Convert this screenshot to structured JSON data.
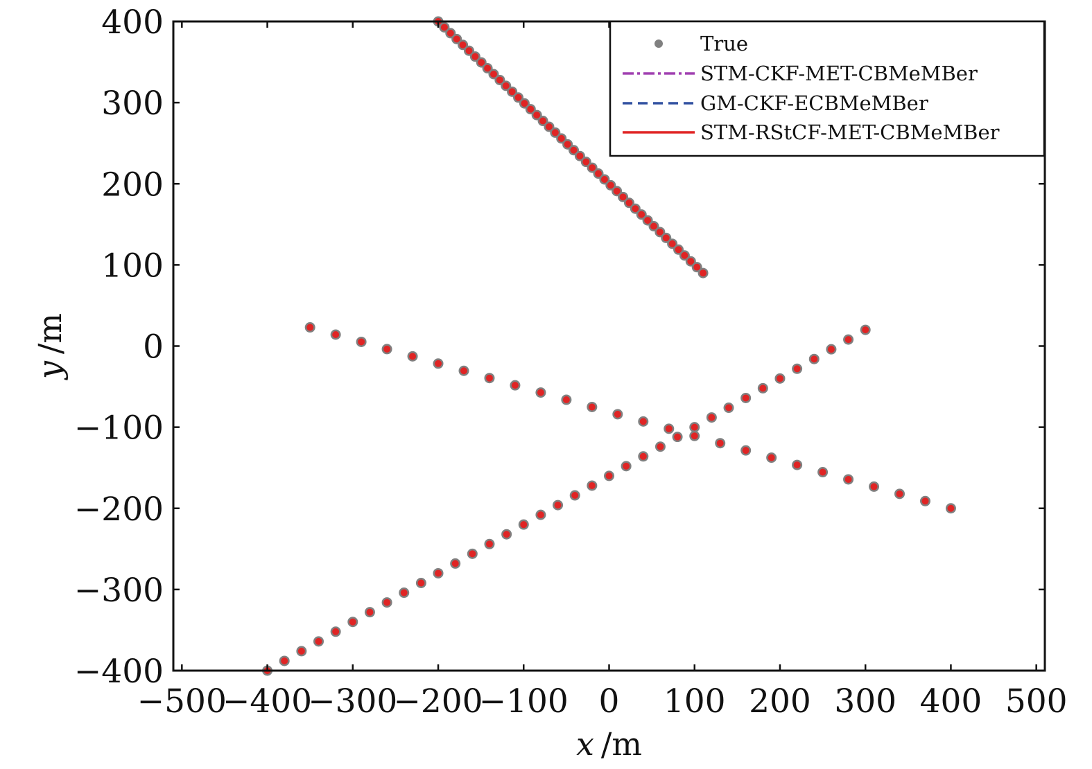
{
  "chart_data": {
    "type": "scatter",
    "title": "",
    "xlabel_var": "x",
    "xlabel_unit": "/m",
    "ylabel_var": "y",
    "ylabel_unit": "/m",
    "xlim": [
      -510,
      510
    ],
    "ylim": [
      -400,
      400
    ],
    "xticks": [
      -500,
      -400,
      -300,
      -200,
      -100,
      0,
      100,
      200,
      300,
      400,
      500
    ],
    "yticks": [
      -400,
      -300,
      -200,
      -100,
      0,
      100,
      200,
      300,
      400
    ],
    "xtick_labels": [
      "−500",
      "−400",
      "−300",
      "−200",
      "−100",
      "0",
      "100",
      "200",
      "300",
      "400",
      "500"
    ],
    "ytick_labels": [
      "−400",
      "−300",
      "−200",
      "−100",
      "0",
      "100",
      "200",
      "300",
      "400"
    ],
    "grid": false,
    "legend_position": "top-right",
    "legend": [
      {
        "name": "True",
        "style": "dot",
        "color": "#808080"
      },
      {
        "name": "STM-CKF-MET-CBMeMBer",
        "style": "dash-dot",
        "color": "#a040b0"
      },
      {
        "name": "GM-CKF-ECBMeMBer",
        "style": "dashed",
        "color": "#3050a0"
      },
      {
        "name": "STM-RStCF-MET-CBMeMBer",
        "style": "solid",
        "color": "#e02424"
      }
    ],
    "tracks": [
      {
        "x_start": -200,
        "y_start": 400,
        "x_end": 110,
        "y_end": 90,
        "points": 44
      },
      {
        "x_start": -350,
        "y_start": 23,
        "x_end": 400,
        "y_end": -200,
        "points": 26
      },
      {
        "x_start": -400,
        "y_start": -400,
        "x_end": 300,
        "y_end": 20,
        "points": 36
      }
    ]
  }
}
